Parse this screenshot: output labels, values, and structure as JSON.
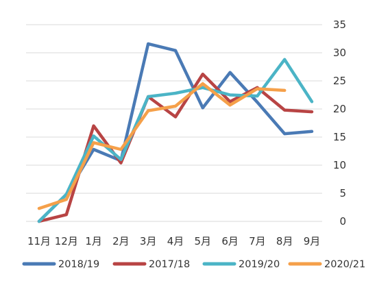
{
  "chart_data": {
    "type": "line",
    "title": "",
    "xlabel": "",
    "ylabel": "",
    "ylim": [
      0,
      35
    ],
    "yticks": [
      0,
      5,
      10,
      15,
      20,
      25,
      30,
      35
    ],
    "y_axis_side": "right",
    "grid": true,
    "legend_position": "bottom",
    "categories": [
      "11月",
      "12月",
      "1月",
      "2月",
      "3月",
      "4月",
      "5月",
      "6月",
      "7月",
      "8月",
      "9月"
    ],
    "series": [
      {
        "name": "2018/19",
        "color": "#4a7ab5",
        "values": [
          0,
          4.8,
          12.8,
          10.8,
          31.6,
          30.4,
          20.2,
          26.5,
          21.2,
          15.6,
          16.0
        ]
      },
      {
        "name": "2017/18",
        "color": "#b84444",
        "values": [
          0,
          1.2,
          17.0,
          10.4,
          22.2,
          18.6,
          26.2,
          21.3,
          23.8,
          19.8,
          19.5
        ]
      },
      {
        "name": "2019/20",
        "color": "#4bb4c6",
        "values": [
          0,
          4.8,
          15.2,
          11.0,
          22.2,
          22.8,
          23.8,
          22.5,
          22.3,
          28.8,
          21.3
        ]
      },
      {
        "name": "2020/21",
        "color": "#f5a04a",
        "values": [
          2.3,
          3.9,
          14.0,
          12.8,
          19.7,
          20.5,
          24.5,
          20.7,
          23.6,
          23.3,
          null
        ]
      }
    ]
  }
}
